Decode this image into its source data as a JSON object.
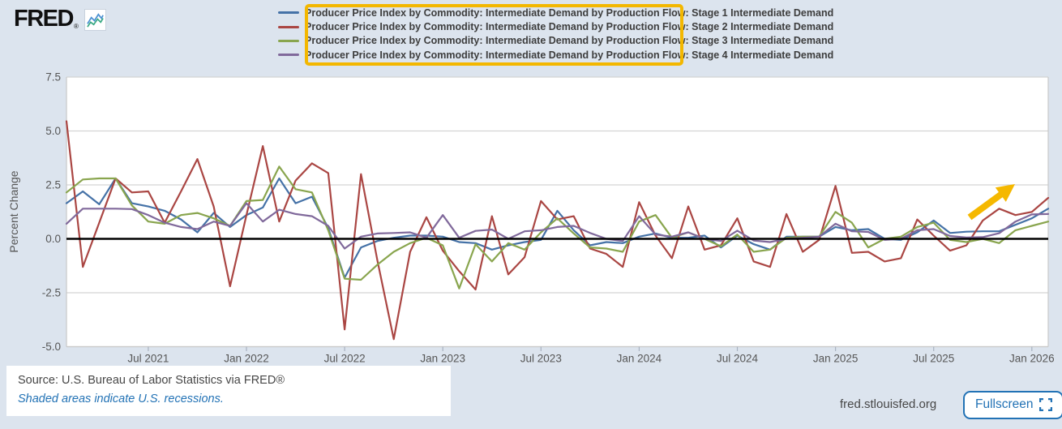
{
  "header": {
    "logo_text": "FRED",
    "logo_registered": "®",
    "logo_icon": "line-chart-icon",
    "logo_icon_colors": [
      "#4a90d2",
      "#3aa984"
    ]
  },
  "legend": {
    "series_labels": [
      {
        "label": "Producer Price Index by Commodity: Intermediate Demand by Production Flow: Stage 1 Intermediate Demand",
        "color": "#4572a7"
      },
      {
        "label": "Producer Price Index by Commodity: Intermediate Demand by Production Flow: Stage 2 Intermediate Demand",
        "color": "#aa4643"
      },
      {
        "label": "Producer Price Index by Commodity: Intermediate Demand by Production Flow: Stage 3 Intermediate Demand",
        "color": "#89a54e"
      },
      {
        "label": "Producer Price Index by Commodity: Intermediate Demand by Production Flow: Stage 4 Intermediate Demand",
        "color": "#80699b"
      }
    ],
    "highlighted_text": "Intermediate Demand by Production Flow: Stage N Intermediate Demand",
    "highlight_color": "#f3b700"
  },
  "chart_data": {
    "type": "line",
    "ylabel": "Percent Change",
    "ylim": [
      -5.0,
      7.5
    ],
    "y_ticks": [
      7.5,
      5.0,
      2.5,
      0.0,
      -2.5,
      -5.0
    ],
    "grid": true,
    "zero_line_color": "#000000",
    "grid_color": "#d3d3d3",
    "plot_bg": "#ffffff",
    "page_bg": "#dce4ee",
    "categories": [
      "2021-02",
      "2021-03",
      "2021-04",
      "2021-05",
      "2021-06",
      "2021-07",
      "2021-08",
      "2021-09",
      "2021-10",
      "2021-11",
      "2021-12",
      "2022-01",
      "2022-02",
      "2022-03",
      "2022-04",
      "2022-05",
      "2022-06",
      "2022-07",
      "2022-08",
      "2022-09",
      "2022-10",
      "2022-11",
      "2022-12",
      "2023-01",
      "2023-02",
      "2023-03",
      "2023-04",
      "2023-05",
      "2023-06",
      "2023-07",
      "2023-08",
      "2023-09",
      "2023-10",
      "2023-11",
      "2023-12",
      "2024-01",
      "2024-02",
      "2024-03",
      "2024-04",
      "2024-05",
      "2024-06",
      "2024-07",
      "2024-08",
      "2024-09",
      "2024-10",
      "2024-11",
      "2024-12",
      "2025-01",
      "2025-02",
      "2025-03",
      "2025-04",
      "2025-05",
      "2025-06",
      "2025-07",
      "2025-08",
      "2025-09",
      "2025-10",
      "2025-11",
      "2025-12",
      "2026-01",
      "2026-02"
    ],
    "x_ticks": [
      {
        "index": 5,
        "label": "Jul 2021"
      },
      {
        "index": 11,
        "label": "Jan 2022"
      },
      {
        "index": 17,
        "label": "Jul 2022"
      },
      {
        "index": 23,
        "label": "Jan 2023"
      },
      {
        "index": 29,
        "label": "Jul 2023"
      },
      {
        "index": 35,
        "label": "Jan 2024"
      },
      {
        "index": 41,
        "label": "Jul 2024"
      },
      {
        "index": 47,
        "label": "Jan 2025"
      },
      {
        "index": 53,
        "label": "Jul 2025"
      },
      {
        "index": 59,
        "label": "Jan 2026"
      }
    ],
    "series": [
      {
        "name": "Stage 1 Intermediate Demand",
        "color": "#4572a7",
        "values": [
          1.65,
          2.2,
          1.6,
          2.8,
          1.65,
          1.5,
          1.3,
          0.9,
          0.3,
          1.2,
          0.55,
          1.1,
          1.45,
          2.8,
          1.65,
          1.95,
          0.5,
          -1.8,
          -0.4,
          -0.1,
          0.05,
          0.15,
          0.15,
          0.1,
          -0.15,
          -0.2,
          -0.5,
          -0.3,
          -0.15,
          -0.05,
          1.3,
          0.4,
          -0.3,
          -0.15,
          -0.2,
          0.1,
          0.25,
          0.05,
          0.05,
          0.15,
          -0.4,
          0.15,
          -0.25,
          -0.5,
          0.1,
          0.1,
          0.1,
          0.55,
          0.4,
          0.45,
          0.0,
          -0.05,
          0.3,
          0.85,
          0.27,
          0.33,
          0.35,
          0.35,
          0.65,
          0.95,
          1.4
        ]
      },
      {
        "name": "Stage 2 Intermediate Demand",
        "color": "#aa4643",
        "values": [
          5.45,
          -1.3,
          0.75,
          2.8,
          2.15,
          2.2,
          0.75,
          2.2,
          3.7,
          1.5,
          -2.2,
          1.1,
          4.3,
          0.8,
          2.7,
          3.5,
          3.05,
          -4.2,
          3.0,
          -1.0,
          -4.65,
          -0.6,
          1.0,
          -0.55,
          -1.5,
          -2.35,
          1.05,
          -1.65,
          -0.85,
          1.75,
          0.9,
          1.05,
          -0.45,
          -0.7,
          -1.3,
          1.7,
          0.15,
          -0.9,
          1.5,
          -0.5,
          -0.3,
          0.95,
          -1.05,
          -1.3,
          1.15,
          -0.6,
          -0.05,
          2.45,
          -0.65,
          -0.6,
          -1.05,
          -0.9,
          0.9,
          0.15,
          -0.55,
          -0.3,
          0.85,
          1.4,
          1.1,
          1.25,
          1.9
        ]
      },
      {
        "name": "Stage 3 Intermediate Demand",
        "color": "#89a54e",
        "values": [
          2.15,
          2.75,
          2.8,
          2.8,
          1.55,
          0.8,
          0.7,
          1.1,
          1.2,
          0.95,
          0.6,
          1.75,
          1.8,
          3.35,
          2.3,
          2.15,
          0.4,
          -1.85,
          -1.9,
          -1.2,
          -0.6,
          -0.2,
          0.05,
          -0.3,
          -2.3,
          -0.25,
          -1.05,
          -0.2,
          -0.5,
          0.3,
          0.95,
          0.25,
          -0.4,
          -0.45,
          -0.6,
          0.8,
          1.1,
          0.05,
          0.3,
          0.0,
          -0.35,
          0.2,
          -0.6,
          -0.5,
          0.05,
          0.1,
          0.1,
          1.25,
          0.75,
          -0.4,
          0.0,
          0.1,
          0.55,
          0.75,
          -0.05,
          -0.15,
          0.0,
          -0.2,
          0.4,
          0.6,
          0.8
        ]
      },
      {
        "name": "Stage 4 Intermediate Demand",
        "color": "#80699b",
        "values": [
          0.7,
          1.4,
          1.4,
          1.4,
          1.38,
          1.1,
          0.75,
          0.55,
          0.45,
          0.8,
          0.6,
          1.65,
          0.8,
          1.35,
          1.15,
          1.05,
          0.6,
          -0.45,
          0.1,
          0.25,
          0.27,
          0.3,
          0.05,
          1.1,
          0.05,
          0.37,
          0.43,
          0.0,
          0.35,
          0.4,
          0.55,
          0.6,
          0.27,
          0.0,
          -0.1,
          1.05,
          0.2,
          0.1,
          0.3,
          0.0,
          -0.1,
          0.38,
          -0.08,
          -0.15,
          0.0,
          0.05,
          0.1,
          0.7,
          0.35,
          0.32,
          -0.05,
          0.0,
          0.4,
          0.45,
          0.13,
          0.06,
          0.08,
          0.26,
          0.8,
          1.13,
          1.15
        ]
      }
    ],
    "legend_position": "top",
    "annotations": {
      "arrow_color": "#f5b800",
      "trend_arrow": "up-right arrow near Jan 2026 pointing at rising lines"
    }
  },
  "footer": {
    "source": "Source: U.S. Bureau of Labor Statistics via FRED®",
    "recessions_note": "Shaded areas indicate U.S. recessions.",
    "site": "fred.stlouisfed.org",
    "fullscreen_label": "Fullscreen"
  }
}
